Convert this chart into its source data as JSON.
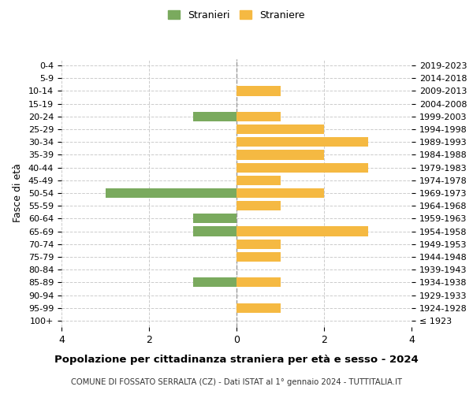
{
  "age_groups": [
    "100+",
    "95-99",
    "90-94",
    "85-89",
    "80-84",
    "75-79",
    "70-74",
    "65-69",
    "60-64",
    "55-59",
    "50-54",
    "45-49",
    "40-44",
    "35-39",
    "30-34",
    "25-29",
    "20-24",
    "15-19",
    "10-14",
    "5-9",
    "0-4"
  ],
  "birth_years": [
    "≤ 1923",
    "1924-1928",
    "1929-1933",
    "1934-1938",
    "1939-1943",
    "1944-1948",
    "1949-1953",
    "1954-1958",
    "1959-1963",
    "1964-1968",
    "1969-1973",
    "1974-1978",
    "1979-1983",
    "1984-1988",
    "1989-1993",
    "1994-1998",
    "1999-2003",
    "2004-2008",
    "2009-2013",
    "2014-2018",
    "2019-2023"
  ],
  "males": [
    0,
    0,
    0,
    1,
    0,
    0,
    0,
    1,
    1,
    0,
    3,
    0,
    0,
    0,
    0,
    0,
    1,
    0,
    0,
    0,
    0
  ],
  "females": [
    0,
    1,
    0,
    1,
    0,
    1,
    1,
    3,
    0,
    1,
    2,
    1,
    3,
    2,
    3,
    2,
    1,
    0,
    1,
    0,
    0
  ],
  "male_color": "#7aaa5e",
  "female_color": "#f5b942",
  "title": "Popolazione per cittadinanza straniera per età e sesso - 2024",
  "subtitle": "COMUNE DI FOSSATO SERRALTA (CZ) - Dati ISTAT al 1° gennaio 2024 - TUTTITALIA.IT",
  "ylabel_left": "Fasce di età",
  "legend_male": "Stranieri",
  "legend_female": "Straniere",
  "xlim": 4,
  "xticks": [
    -4,
    -2,
    0,
    2,
    4
  ],
  "xticklabels": [
    "4",
    "2",
    "0",
    "2",
    "4"
  ],
  "bg_color": "#ffffff",
  "grid_color": "#cccccc",
  "bar_height": 0.75
}
